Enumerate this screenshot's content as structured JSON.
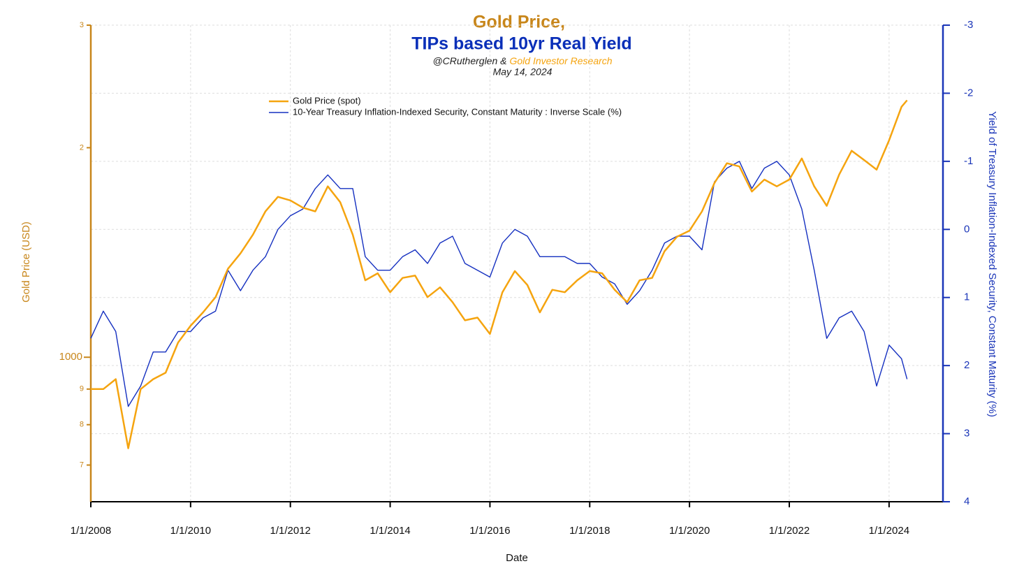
{
  "chart_data": {
    "type": "line",
    "title": [
      "Gold Price,",
      "TIPs based 10yr Real Yield"
    ],
    "subtitle": [
      "@CRutherglen &",
      "Gold Investor Research"
    ],
    "annotation": "May 14, 2024",
    "x_label": "Date",
    "y_label": "Gold Price (USD)",
    "y2_label": "Yield of Treasury Inflation-Indexed Security, Constant Maturity (%)",
    "legend_position": "upper left",
    "grid": true,
    "y_log": true,
    "y2_inverted": true,
    "y_axis_color": "#c8861a",
    "y2_axis_color": "#1a35b8",
    "xlim": [
      2008,
      2025.08
    ],
    "xticks": [
      {
        "value": 2008,
        "label": "1/1/2008"
      },
      {
        "value": 2010,
        "label": "1/1/2010"
      },
      {
        "value": 2012,
        "label": "1/1/2012"
      },
      {
        "value": 2014,
        "label": "1/1/2014"
      },
      {
        "value": 2016,
        "label": "1/1/2016"
      },
      {
        "value": 2018,
        "label": "1/1/2018"
      },
      {
        "value": 2020,
        "label": "1/1/2020"
      },
      {
        "value": 2022,
        "label": "1/1/2022"
      },
      {
        "value": 2024,
        "label": "1/1/2024"
      }
    ],
    "ylim": [
      620,
      3000
    ],
    "yticks": [
      {
        "value": 3000,
        "label": "3"
      },
      {
        "value": 2000,
        "label": "2"
      },
      1000,
      {
        "value": 900,
        "label": "9"
      },
      {
        "value": 800,
        "label": "8"
      },
      {
        "value": 700,
        "label": "7"
      }
    ],
    "y2lim": [
      -3,
      4
    ],
    "y2ticks": [
      -3,
      -2,
      -1,
      0,
      1,
      2,
      3,
      4
    ],
    "x": [
      2008,
      2008.25,
      2008.5,
      2008.75,
      2009,
      2009.25,
      2009.5,
      2009.75,
      2010,
      2010.25,
      2010.5,
      2010.75,
      2011,
      2011.25,
      2011.5,
      2011.75,
      2012,
      2012.25,
      2012.5,
      2012.75,
      2013,
      2013.25,
      2013.5,
      2013.75,
      2014,
      2014.25,
      2014.5,
      2014.75,
      2015,
      2015.25,
      2015.5,
      2015.75,
      2016,
      2016.25,
      2016.5,
      2016.75,
      2017,
      2017.25,
      2017.5,
      2017.75,
      2018,
      2018.25,
      2018.5,
      2018.75,
      2019,
      2019.25,
      2019.5,
      2019.75,
      2020,
      2020.25,
      2020.5,
      2020.75,
      2021,
      2021.25,
      2021.5,
      2021.75,
      2022,
      2022.25,
      2022.5,
      2022.75,
      2023,
      2023.25,
      2023.5,
      2023.75,
      2024,
      2024.25,
      2024.36
    ],
    "series": [
      {
        "name": "Gold Price (spot)",
        "color": "#f5a40f",
        "values": [
          900,
          900,
          930,
          740,
          900,
          930,
          950,
          1050,
          1110,
          1160,
          1220,
          1340,
          1410,
          1500,
          1620,
          1700,
          1680,
          1640,
          1620,
          1760,
          1670,
          1500,
          1290,
          1320,
          1240,
          1300,
          1310,
          1220,
          1260,
          1200,
          1130,
          1140,
          1080,
          1240,
          1330,
          1270,
          1160,
          1250,
          1240,
          1290,
          1330,
          1320,
          1250,
          1200,
          1290,
          1300,
          1420,
          1490,
          1520,
          1620,
          1780,
          1900,
          1880,
          1730,
          1800,
          1760,
          1800,
          1930,
          1760,
          1650,
          1830,
          1980,
          1920,
          1860,
          2050,
          2290,
          2340
        ]
      },
      {
        "name": "10-Year Treasury Inflation-Indexed Security, Constant Maturity : Inverse Scale (%)",
        "color": "#1530c0",
        "axis": "y2",
        "values": [
          1.6,
          1.2,
          1.5,
          2.6,
          2.3,
          1.8,
          1.8,
          1.5,
          1.5,
          1.3,
          1.2,
          0.6,
          0.9,
          0.6,
          0.4,
          0.0,
          -0.2,
          -0.3,
          -0.6,
          -0.8,
          -0.6,
          -0.6,
          0.4,
          0.6,
          0.6,
          0.4,
          0.3,
          0.5,
          0.2,
          0.1,
          0.5,
          0.6,
          0.7,
          0.2,
          0.0,
          0.1,
          0.4,
          0.4,
          0.4,
          0.5,
          0.5,
          0.7,
          0.8,
          1.1,
          0.9,
          0.6,
          0.2,
          0.1,
          0.1,
          0.3,
          -0.7,
          -0.9,
          -1.0,
          -0.6,
          -0.9,
          -1.0,
          -0.8,
          -0.3,
          0.6,
          1.6,
          1.3,
          1.2,
          1.5,
          2.3,
          1.7,
          1.9,
          2.2
        ]
      }
    ]
  }
}
